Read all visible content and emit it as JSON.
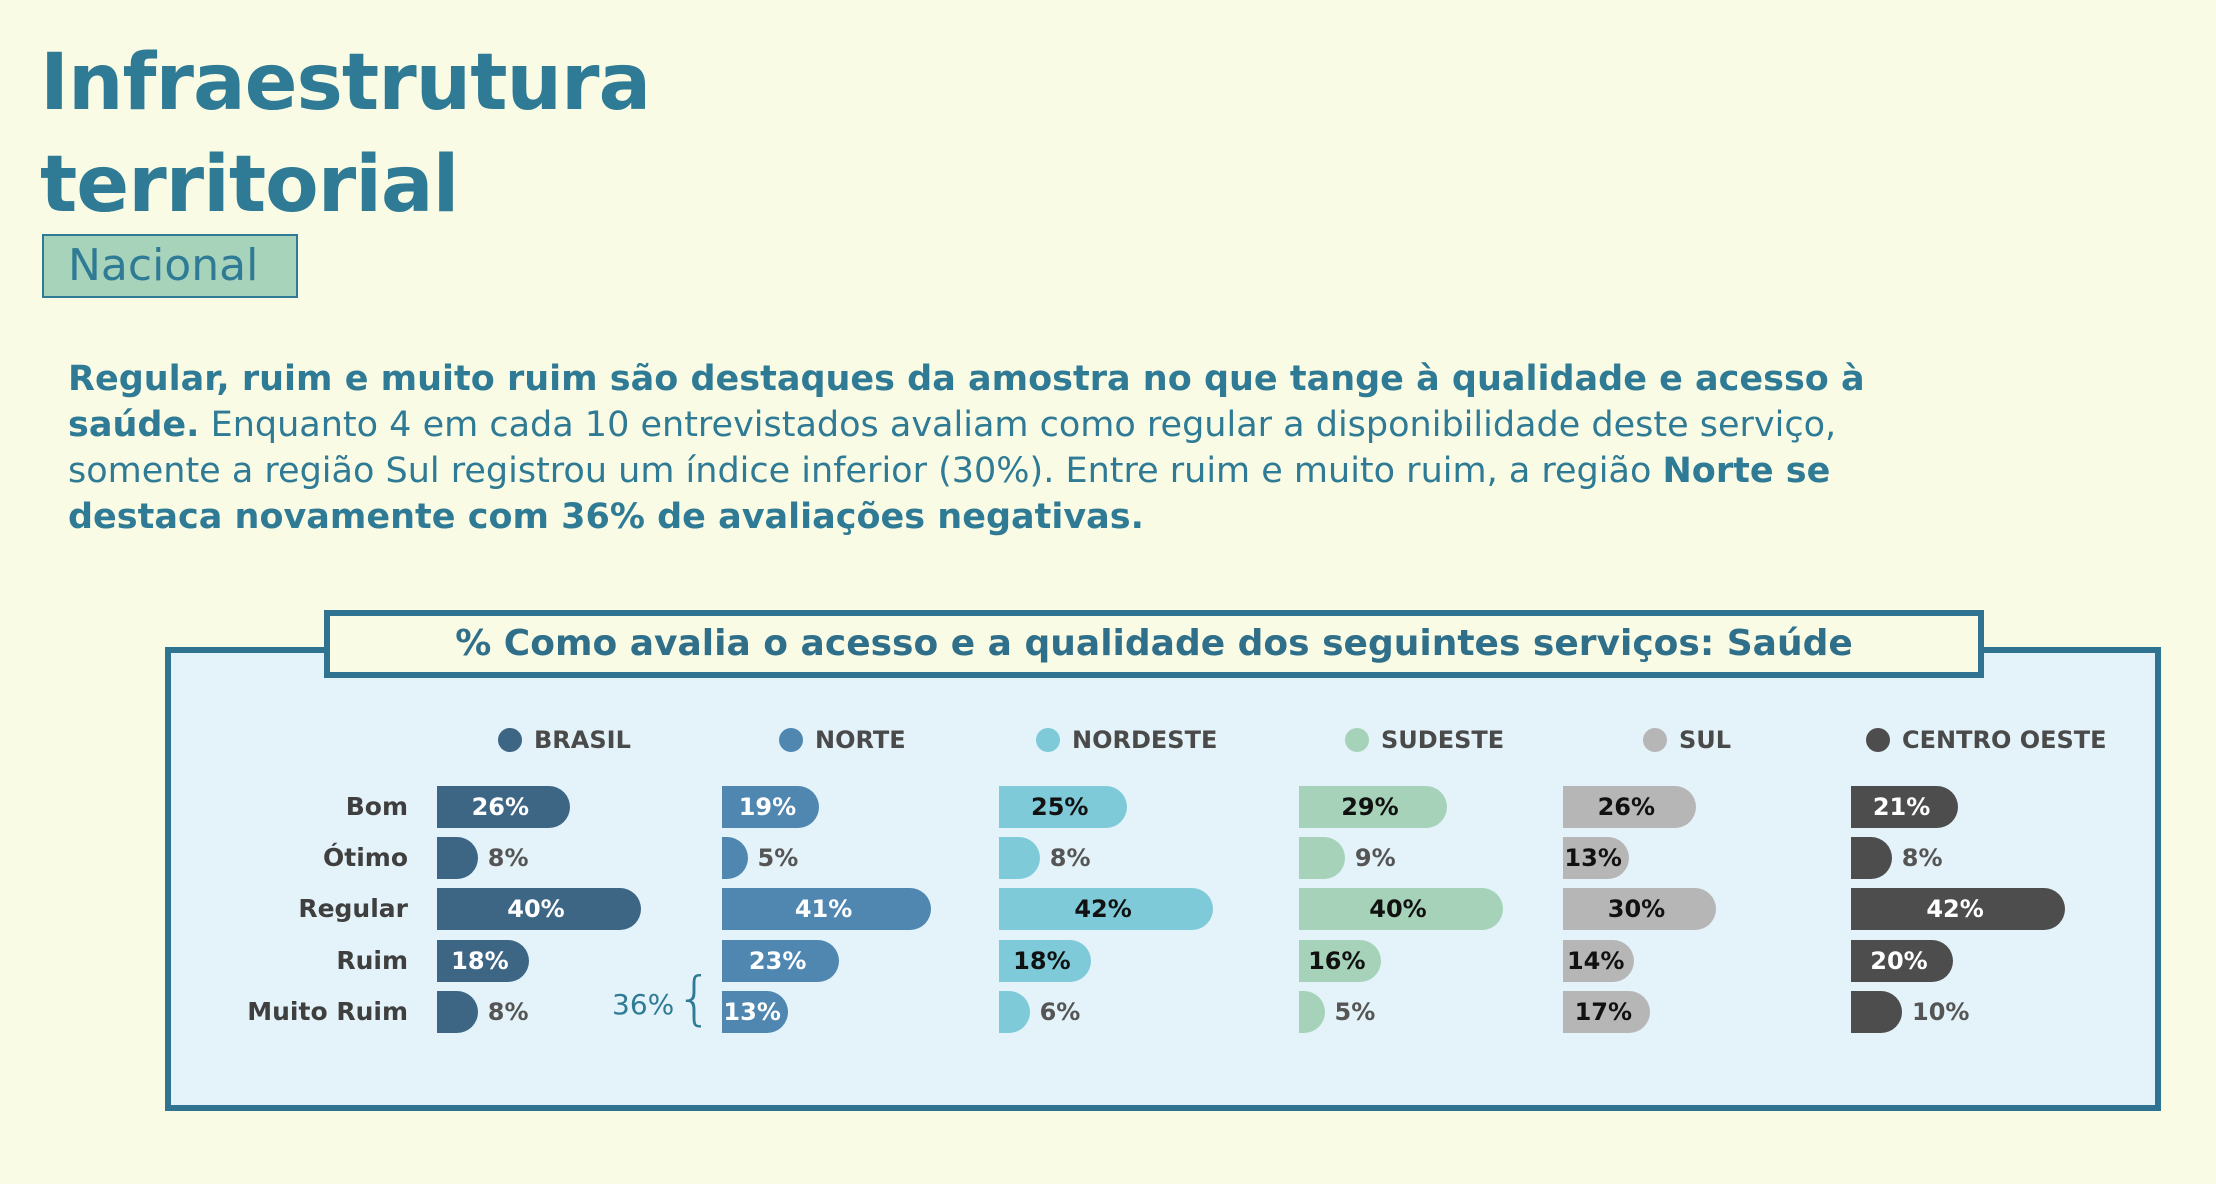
{
  "header": {
    "title_line1": "Infraestrutura",
    "title_line2": "territorial",
    "badge": "Nacional"
  },
  "paragraph": {
    "bold1": "Regular, ruim e muito ruim são destaques da amostra no que tange à qualidade e acesso à saúde.",
    "text1": " Enquanto 4 em cada 10 entrevistados avaliam como regular a disponibilidade deste serviço, somente a região Sul registrou um índice inferior (30%). Entre ruim e muito ruim, a região ",
    "bold2": "Norte se destaca novamente com 36% de avaliações negativas."
  },
  "annotation": {
    "label": "36%",
    "brace": "{"
  },
  "chart_data": {
    "type": "bar",
    "title": "% Como  avalia o acesso e a qualidade dos seguintes serviços: Saúde",
    "categories": [
      "Bom",
      "Ótimo",
      "Regular",
      "Ruim",
      "Muito Ruim"
    ],
    "unit": "%",
    "series": [
      {
        "name": "BRASIL",
        "color": "#3d6584",
        "label_color": "#ffffff",
        "values": [
          26,
          8,
          40,
          18,
          8
        ]
      },
      {
        "name": "NORTE",
        "color": "#4f87b0",
        "label_color": "#ffffff",
        "values": [
          19,
          5,
          41,
          23,
          13
        ]
      },
      {
        "name": "NORDESTE",
        "color": "#7fcad9",
        "label_color": "#111111",
        "values": [
          25,
          8,
          42,
          18,
          6
        ]
      },
      {
        "name": "SUDESTE",
        "color": "#a6d2b9",
        "label_color": "#111111",
        "values": [
          29,
          9,
          40,
          16,
          5
        ]
      },
      {
        "name": "SUL",
        "color": "#b6b6b6",
        "label_color": "#111111",
        "values": [
          26,
          13,
          30,
          14,
          17
        ]
      },
      {
        "name": "CENTRO OESTE",
        "color": "#4d4d4d",
        "label_color": "#ffffff",
        "values": [
          21,
          8,
          42,
          20,
          10
        ]
      }
    ]
  }
}
